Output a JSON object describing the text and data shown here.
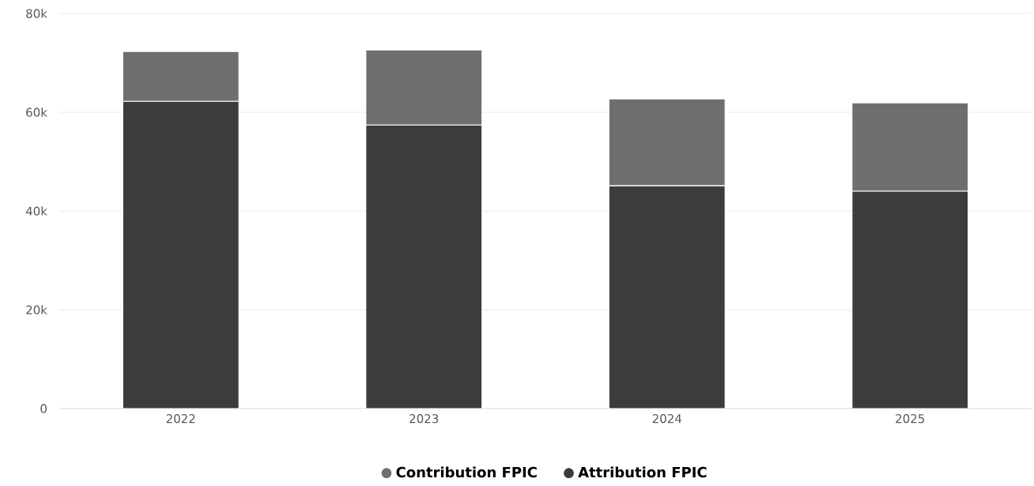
{
  "chart_data": {
    "type": "bar",
    "stacked": true,
    "categories": [
      "2022",
      "2023",
      "2024",
      "2025"
    ],
    "series": [
      {
        "name": "Attribution FPIC",
        "color": "#3c3c3c",
        "values": [
          62200,
          57400,
          45100,
          44000
        ]
      },
      {
        "name": "Contribution FPIC",
        "color": "#6e6e6e",
        "values": [
          10100,
          15200,
          17600,
          17900
        ]
      }
    ],
    "ylim": [
      0,
      80000
    ],
    "yticks": [
      {
        "value": 0,
        "label": "0"
      },
      {
        "value": 20000,
        "label": "20k"
      },
      {
        "value": 40000,
        "label": "40k"
      },
      {
        "value": 60000,
        "label": "60k"
      },
      {
        "value": 80000,
        "label": "80k"
      }
    ],
    "grid": "y",
    "legend": "bottom"
  }
}
